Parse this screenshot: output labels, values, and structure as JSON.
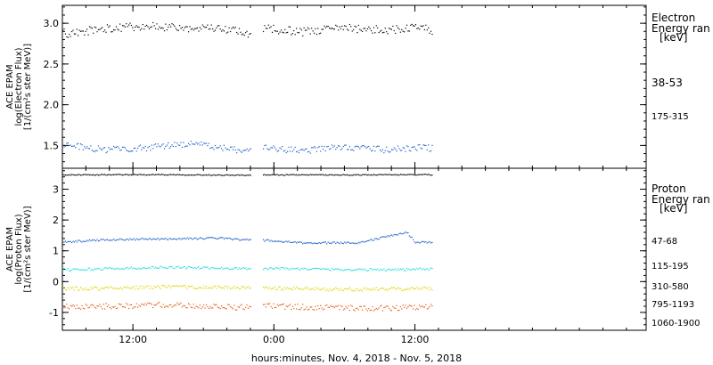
{
  "x_axis_label": "hours:minutes, Nov.  4, 2018 - Nov.  5, 2018",
  "chart_data": [
    {
      "type": "scatter",
      "panel": "electron",
      "ylabel_lines": [
        "ACE EPAM",
        "log(Electron Flux)",
        "[1/(cm²s ster MeV)]"
      ],
      "ylim": [
        1.22,
        3.22
      ],
      "yticks": [
        "1.5",
        "2.0",
        "2.5",
        "3.0"
      ],
      "ytick_values": [
        1.5,
        2.0,
        2.5,
        3.0
      ],
      "xlim": [
        -0.75,
        1.32
      ],
      "data_gap": [
        -0.08,
        -0.04
      ],
      "data_end": 0.56,
      "legend_title_lines": [
        "Electron",
        "Energy ran",
        "[keV]"
      ],
      "series": [
        {
          "name": "38-53",
          "color": "#000000",
          "mean": 2.92,
          "spread": 0.1,
          "points": [
            [
              -0.74,
              2.88
            ],
            [
              -0.6,
              2.94
            ],
            [
              -0.45,
              2.97
            ],
            [
              -0.3,
              2.95
            ],
            [
              -0.15,
              2.93
            ],
            [
              -0.09,
              2.88
            ],
            [
              -0.03,
              2.94
            ],
            [
              0.1,
              2.9
            ],
            [
              0.25,
              2.95
            ],
            [
              0.4,
              2.92
            ],
            [
              0.55,
              2.97
            ]
          ]
        },
        {
          "name": "175-315",
          "color": "#1a5dc8",
          "mean": 1.47,
          "spread": 0.08,
          "points": [
            [
              -0.74,
              1.51
            ],
            [
              -0.6,
              1.45
            ],
            [
              -0.45,
              1.48
            ],
            [
              -0.3,
              1.53
            ],
            [
              -0.15,
              1.46
            ],
            [
              -0.09,
              1.44
            ],
            [
              -0.03,
              1.47
            ],
            [
              0.1,
              1.44
            ],
            [
              0.25,
              1.49
            ],
            [
              0.4,
              1.45
            ],
            [
              0.55,
              1.49
            ]
          ]
        }
      ]
    },
    {
      "type": "scatter",
      "panel": "proton",
      "ylabel_lines": [
        "ACE EPAM",
        "log(Proton Flux)",
        "[1/(cm²s ster MeV)]"
      ],
      "ylim": [
        -1.58,
        3.68
      ],
      "yticks": [
        "-1",
        "0",
        "1",
        "2",
        "3"
      ],
      "ytick_values": [
        -1,
        0,
        1,
        2,
        3
      ],
      "xlim": [
        -0.75,
        1.32
      ],
      "data_gap": [
        -0.08,
        -0.04
      ],
      "data_end": 0.56,
      "legend_title_lines": [
        "Proton",
        "Energy ran",
        "[keV]"
      ],
      "series": [
        {
          "name": "47-68",
          "color": "#000000",
          "mean": 3.48,
          "spread": 0.03,
          "points": [
            [
              -0.74,
              3.48
            ],
            [
              -0.4,
              3.49
            ],
            [
              -0.09,
              3.47
            ],
            [
              -0.03,
              3.48
            ],
            [
              0.3,
              3.48
            ],
            [
              0.55,
              3.49
            ]
          ]
        },
        {
          "name": "115-195",
          "color": "#1a5dc8",
          "mean": 1.3,
          "spread": 0.06,
          "points": [
            [
              -0.74,
              1.3
            ],
            [
              -0.6,
              1.38
            ],
            [
              -0.4,
              1.4
            ],
            [
              -0.2,
              1.43
            ],
            [
              -0.09,
              1.37
            ],
            [
              -0.03,
              1.35
            ],
            [
              0.1,
              1.27
            ],
            [
              0.3,
              1.28
            ],
            [
              0.47,
              1.62
            ],
            [
              0.5,
              1.3
            ],
            [
              0.55,
              1.28
            ]
          ]
        },
        {
          "name": "310-580",
          "color": "#22d8d8",
          "mean": 0.43,
          "spread": 0.08,
          "points": [
            [
              -0.74,
              0.4
            ],
            [
              -0.4,
              0.48
            ],
            [
              -0.09,
              0.44
            ],
            [
              -0.03,
              0.45
            ],
            [
              0.3,
              0.4
            ],
            [
              0.55,
              0.42
            ]
          ]
        },
        {
          "name": "795-1193",
          "color": "#d8d800",
          "mean": -0.2,
          "spread": 0.12,
          "points": [
            [
              -0.74,
              -0.22
            ],
            [
              -0.4,
              -0.16
            ],
            [
              -0.09,
              -0.18
            ],
            [
              -0.03,
              -0.2
            ],
            [
              0.3,
              -0.24
            ],
            [
              0.55,
              -0.2
            ]
          ]
        },
        {
          "name": "1060-1900",
          "color": "#e05a10",
          "mean": -0.8,
          "spread": 0.18,
          "points": [
            [
              -0.74,
              -0.8
            ],
            [
              -0.4,
              -0.75
            ],
            [
              -0.09,
              -0.82
            ],
            [
              -0.03,
              -0.78
            ],
            [
              0.3,
              -0.85
            ],
            [
              0.55,
              -0.82
            ]
          ]
        }
      ]
    }
  ],
  "x_ticks": [
    {
      "label": "12:00",
      "value": -0.5
    },
    {
      "label": "0:00",
      "value": 0
    },
    {
      "label": "12:00",
      "value": 0.5
    }
  ]
}
